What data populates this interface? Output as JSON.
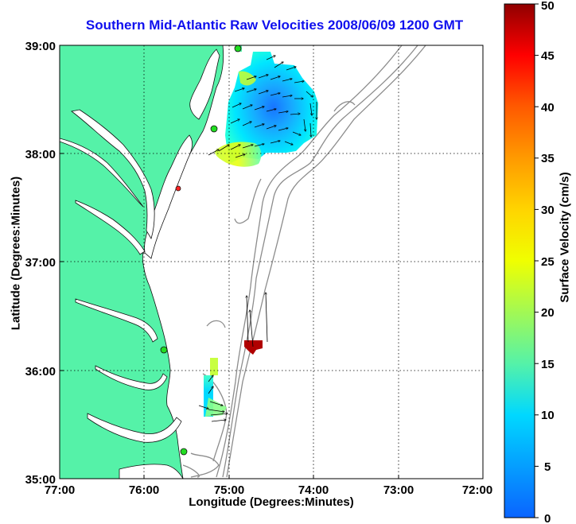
{
  "title": "Southern Mid-Atlantic Raw Velocities 2008/06/09 1200 GMT",
  "xlabel": "Longitude (Degrees:Minutes)",
  "ylabel": "Latitude (Degrees:Minutes)",
  "colorbar": {
    "label": "Surface Velocity (cm/s)",
    "ticks": [
      "0",
      "5",
      "10",
      "15",
      "20",
      "25",
      "30",
      "35",
      "40",
      "45",
      "50"
    ],
    "range": [
      0,
      50
    ]
  },
  "x_ticks": [
    "77:00",
    "76:00",
    "75:00",
    "74:00",
    "73:00",
    "72:00"
  ],
  "y_ticks": [
    "39:00",
    "38:00",
    "37:00",
    "36:00",
    "35:00"
  ],
  "colors": {
    "land": "#55f2a8",
    "title": "#1010ee",
    "bathymetry": "#8c8c8c",
    "station": "#22dd22",
    "station_alt": "#ff2222"
  },
  "chart_data": {
    "type": "map",
    "title": "Southern Mid-Atlantic Raw Velocities 2008/06/09 1200 GMT",
    "xlabel": "Longitude (Degrees:Minutes)",
    "ylabel": "Latitude (Degrees:Minutes)",
    "xlim": [
      -77.0,
      -72.0
    ],
    "ylim": [
      35.0,
      39.0
    ],
    "grid": true,
    "colorbar_range_cm_s": [
      0,
      50
    ],
    "stations": [
      {
        "lon": -75.11,
        "lat": 38.98,
        "color": "green"
      },
      {
        "lon": -75.14,
        "lat": 38.23,
        "color": "green"
      },
      {
        "lon": -75.53,
        "lat": 37.68,
        "color": "red"
      },
      {
        "lon": -75.67,
        "lat": 36.19,
        "color": "green"
      },
      {
        "lon": -75.47,
        "lat": 35.25,
        "color": "green"
      }
    ],
    "velocity_patches": [
      {
        "name": "delaware-bay-offshore",
        "lon_range": [
          -75.1,
          -74.1
        ],
        "lat_range": [
          37.9,
          38.95
        ],
        "speed_range_cm_s": [
          5,
          25
        ]
      },
      {
        "name": "hatteras-north",
        "lon_range": [
          -75.3,
          -75.0
        ],
        "lat_range": [
          35.6,
          36.15
        ],
        "speed_range_cm_s": [
          10,
          25
        ]
      },
      {
        "name": "hatteras-offshore",
        "lon_range": [
          -74.72,
          -74.58
        ],
        "lat_range": [
          36.18,
          36.28
        ],
        "speed_range_cm_s": [
          45,
          50
        ]
      }
    ]
  }
}
